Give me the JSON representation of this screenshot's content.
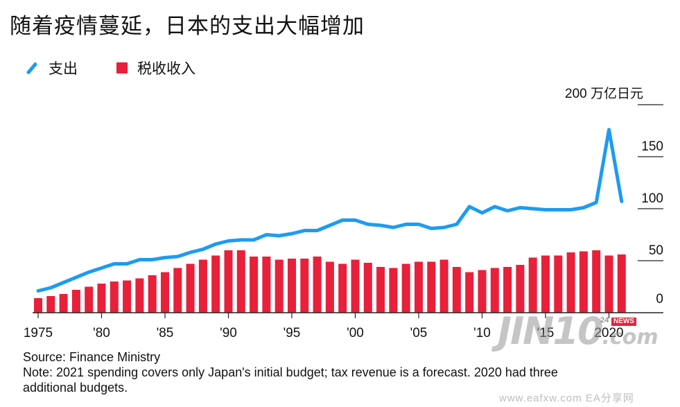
{
  "title": "随着疫情蔓延，日本的支出大幅增加",
  "legend": {
    "line_label": "支出",
    "bar_label": "税收收入"
  },
  "colors": {
    "line": "#1E9BF0",
    "bar": "#E8203A",
    "grid": "#222222",
    "axis": "#222222"
  },
  "chart_data": {
    "type": "bar",
    "title": "随着疫情蔓延，日本的支出大幅增加",
    "unit_label": "200 万亿日元",
    "x": [
      1975,
      1976,
      1977,
      1978,
      1979,
      1980,
      1981,
      1982,
      1983,
      1984,
      1985,
      1986,
      1987,
      1988,
      1989,
      1990,
      1991,
      1992,
      1993,
      1994,
      1995,
      1996,
      1997,
      1998,
      1999,
      2000,
      2001,
      2002,
      2003,
      2004,
      2005,
      2006,
      2007,
      2008,
      2009,
      2010,
      2011,
      2012,
      2013,
      2014,
      2015,
      2016,
      2017,
      2018,
      2019,
      2020,
      2021
    ],
    "x_tick_values": [
      1975,
      1980,
      1985,
      1990,
      1995,
      2000,
      2005,
      2010,
      2015,
      2020
    ],
    "x_tick_labels": [
      "1975",
      "'80",
      "'85",
      "'90",
      "'95",
      "'00",
      "'05",
      "'10",
      "'15",
      "2020"
    ],
    "y_ticks": [
      0,
      50,
      100,
      150,
      200
    ],
    "y_tick_labels": [
      "0",
      "50",
      "100",
      "150",
      ""
    ],
    "ylim": [
      0,
      200
    ],
    "grid": true,
    "legend_position": "top-left",
    "series": [
      {
        "name": "支出",
        "type": "line",
        "values": [
          21,
          24,
          29,
          34,
          39,
          43,
          47,
          47,
          51,
          51,
          53,
          54,
          58,
          61,
          66,
          69,
          70,
          70,
          75,
          74,
          76,
          79,
          79,
          84,
          89,
          89,
          85,
          84,
          82,
          85,
          85,
          81,
          82,
          85,
          102,
          96,
          102,
          98,
          101,
          100,
          99,
          99,
          99,
          101,
          106,
          176,
          107
        ]
      },
      {
        "name": "税收收入",
        "type": "bar",
        "values": [
          14,
          16,
          18,
          22,
          25,
          28,
          30,
          31,
          33,
          36,
          39,
          43,
          47,
          51,
          55,
          60,
          60,
          54,
          54,
          51,
          52,
          52,
          54,
          49,
          47,
          51,
          48,
          44,
          43,
          47,
          49,
          49,
          51,
          44,
          39,
          41,
          43,
          44,
          46,
          53,
          55,
          55,
          58,
          59,
          60,
          55,
          56
        ]
      }
    ]
  },
  "footer": {
    "source": "Source: Finance Ministry",
    "note_line1": "Note: 2021 spending covers only Japan's initial budget; tax revenue is a forecast. 2020 had three",
    "note_line2": "additional budgets."
  },
  "watermark": {
    "logo": "JIN10",
    "dotcom": ".com",
    "badge_num": "24",
    "badge_text": "NEWS",
    "site": "www.eafxw.com   EA分享网"
  }
}
